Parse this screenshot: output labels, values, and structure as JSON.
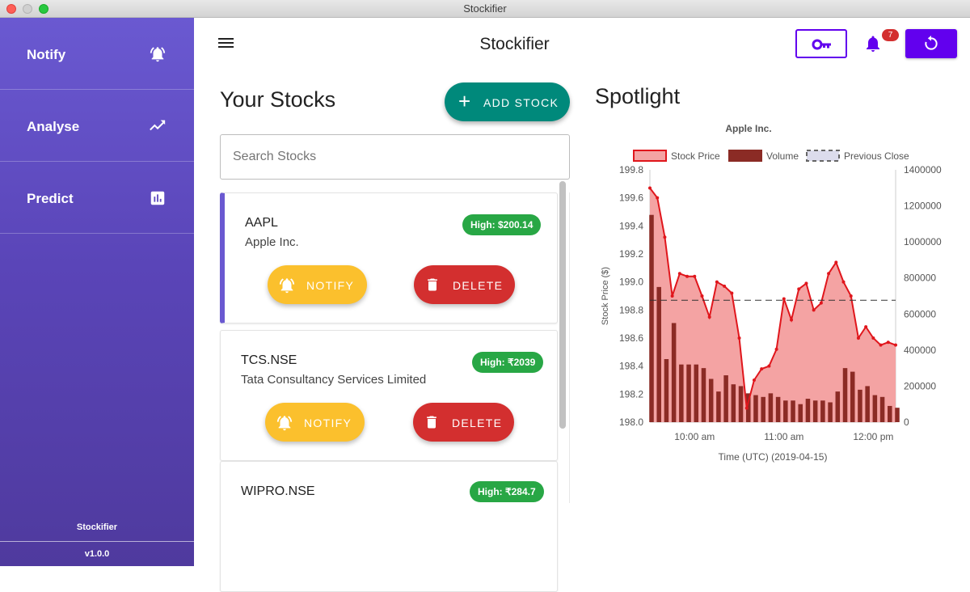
{
  "window": {
    "title": "Stockifier"
  },
  "sidebar": {
    "items": [
      {
        "label": "Notify",
        "icon": "bell-ring-icon"
      },
      {
        "label": "Analyse",
        "icon": "trending-up-icon"
      },
      {
        "label": "Predict",
        "icon": "bar-chart-icon"
      }
    ],
    "footer_name": "Stockifier",
    "version": "v1.0.0"
  },
  "header": {
    "title": "Stockifier",
    "notification_count": "7"
  },
  "stocks_panel": {
    "title": "Your Stocks",
    "add_label": "ADD STOCK",
    "search_placeholder": "Search Stocks",
    "notify_label": "NOTIFY",
    "delete_label": "DELETE",
    "items": [
      {
        "symbol": "AAPL",
        "name": "Apple Inc.",
        "high": "High: $200.14"
      },
      {
        "symbol": "TCS.NSE",
        "name": "Tata Consultancy Services Limited",
        "high": "High: ₹2039"
      },
      {
        "symbol": "WIPRO.NSE",
        "name": "",
        "high": "High: ₹284.7"
      }
    ]
  },
  "spotlight": {
    "title": "Spotlight"
  },
  "colors": {
    "sidebar_top": "#6a59d1",
    "sidebar_bottom": "#4f3a9e",
    "accent_purple": "#6200ee",
    "teal": "#00897b",
    "notify_yellow": "#fbc02d",
    "delete_red": "#d32f2f",
    "badge_green": "#28a745",
    "price_line": "#e0161c",
    "price_fill": "#f4a3a3",
    "volume_bar": "#8b2b25"
  },
  "chart_data": {
    "type": "line",
    "title": "Apple Inc.",
    "xlabel": "Time (UTC) (2019-04-15)",
    "ylabel": "Stock Price ($)",
    "ylim": [
      198.0,
      199.8
    ],
    "y2lim": [
      0,
      1400000
    ],
    "yticks": [
      "198.0",
      "198.2",
      "198.4",
      "198.6",
      "198.8",
      "199.0",
      "199.2",
      "199.4",
      "199.6",
      "199.8"
    ],
    "y2ticks": [
      "0",
      "200000",
      "400000",
      "600000",
      "800000",
      "1000000",
      "1200000",
      "1400000"
    ],
    "xticks": [
      {
        "label": "10:00 am",
        "minute": 600
      },
      {
        "label": "11:00 am",
        "minute": 660
      },
      {
        "label": "12:00 pm",
        "minute": 720
      }
    ],
    "xlim_minutes": [
      570,
      735
    ],
    "legend": [
      "Stock Price",
      "Volume",
      "Previous Close"
    ],
    "legend_position": "top",
    "previous_close": 198.87,
    "series": [
      {
        "name": "Stock Price",
        "x": [
          570,
          575,
          580,
          585,
          590,
          595,
          600,
          605,
          610,
          615,
          620,
          625,
          630,
          635,
          640,
          645,
          650,
          655,
          660,
          665,
          670,
          675,
          680,
          685,
          690,
          695,
          700,
          705,
          710,
          715,
          720,
          725,
          730,
          735
        ],
        "values": [
          199.67,
          199.6,
          199.32,
          198.9,
          199.06,
          199.04,
          199.04,
          198.9,
          198.75,
          199.0,
          198.97,
          198.92,
          198.6,
          198.1,
          198.3,
          198.38,
          198.4,
          198.52,
          198.88,
          198.73,
          198.95,
          198.99,
          198.8,
          198.85,
          199.06,
          199.14,
          199.0,
          198.9,
          198.6,
          198.68,
          198.6,
          198.55,
          198.57,
          198.55
        ]
      },
      {
        "name": "Volume",
        "x": [
          570,
          575,
          580,
          585,
          590,
          595,
          600,
          605,
          610,
          615,
          620,
          625,
          630,
          635,
          640,
          645,
          650,
          655,
          660,
          665,
          670,
          675,
          680,
          685,
          690,
          695,
          700,
          705,
          710,
          715,
          720,
          725,
          730,
          735
        ],
        "values": [
          1150000,
          750000,
          350000,
          550000,
          320000,
          320000,
          320000,
          300000,
          240000,
          170000,
          260000,
          210000,
          200000,
          160000,
          150000,
          140000,
          160000,
          140000,
          120000,
          120000,
          100000,
          130000,
          120000,
          120000,
          110000,
          170000,
          300000,
          280000,
          180000,
          200000,
          150000,
          140000,
          90000,
          80000
        ]
      }
    ]
  }
}
